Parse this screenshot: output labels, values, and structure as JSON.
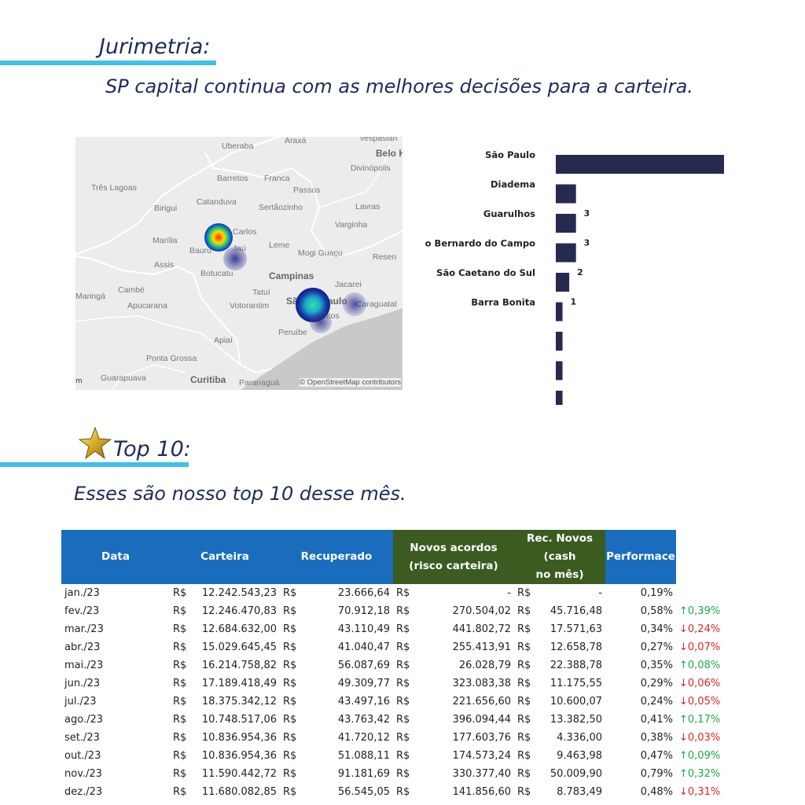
{
  "jurimetria": {
    "title": "Jurimetria:",
    "subtitle": "SP capital continua com as melhores decisões para a carteira."
  },
  "map": {
    "labels": [
      "Araxá",
      "vespasian",
      "Uberaba",
      "Belo H",
      "Divinópolis",
      "Barretos",
      "Franca",
      "Três Lagoas",
      "Passos",
      "Catanduva",
      "Birigui",
      "Sertãozinho",
      "Lavras",
      "Varginha",
      "Carlos",
      "Marília",
      "Bauru",
      "Jaú",
      "Leme",
      "Mogi Guaçu",
      "Resen",
      "Assis",
      "Botucatu",
      "Campinas",
      "Jacarei",
      "Cambé",
      "Maringá",
      "Apucarana",
      "Tatuí",
      "Votorantim",
      "São",
      "Paulo",
      "Caraguatat",
      "Santos",
      "Peruíbe",
      "Apiaí",
      "Ponta Grossa",
      "Guarapuava",
      "Curitiba",
      "Paranaguá"
    ],
    "credit": "© OpenStreetMap contributors",
    "scale": "m"
  },
  "bar_chart": {
    "bar_color": "#262a4f",
    "categories": [
      "São Paulo",
      "Diadema",
      "Guarulhos",
      "São Bernardo do Campo",
      "São Caetano do Sul",
      "Barra Bonita",
      "",
      "",
      ""
    ],
    "data_labels": [
      "",
      "",
      "3",
      "3",
      "2",
      "1",
      "",
      "",
      ""
    ]
  },
  "chart_data": {
    "type": "bar",
    "orientation": "horizontal",
    "categories": [
      "São Paulo",
      "Diadema",
      "Guarulhos",
      "São Bernardo do Campo",
      "São Caetano do Sul",
      "Barra Bonita",
      "",
      "",
      ""
    ],
    "values": [
      25,
      3,
      3,
      3,
      2,
      1,
      1,
      1,
      1
    ],
    "xlim": [
      0,
      25
    ]
  },
  "top10": {
    "title": "Top 10:",
    "subtitle": "Esses são nosso top 10 desse mês."
  },
  "table": {
    "headers": {
      "data": "Data",
      "carteira": "Carteira",
      "recuperado": "Recuperado",
      "novos1": "Novos acordos",
      "novos2": "(risco carteira)",
      "rec1": "Rec. Novos (cash",
      "rec2": "no mês)",
      "performace": "Performace"
    },
    "currency": "R$",
    "rows": [
      {
        "data": "jan./23",
        "carteira": "12.242.543,23",
        "recuperado": "23.666,64",
        "novos": "-",
        "rec": "-",
        "perf": "0,19%",
        "trend": "",
        "dir": ""
      },
      {
        "data": "fev./23",
        "carteira": "12.246.470,83",
        "recuperado": "70.912,18",
        "novos": "270.504,02",
        "rec": "45.716,48",
        "perf": "0,58%",
        "trend": "0,39%",
        "dir": "up"
      },
      {
        "data": "mar./23",
        "carteira": "12.684.632,00",
        "recuperado": "43.110,49",
        "novos": "441.802,72",
        "rec": "17.571,63",
        "perf": "0,34%",
        "trend": "0,24%",
        "dir": "down"
      },
      {
        "data": "abr./23",
        "carteira": "15.029.645,45",
        "recuperado": "41.040,47",
        "novos": "255.413,91",
        "rec": "12.658,78",
        "perf": "0,27%",
        "trend": "0,07%",
        "dir": "down"
      },
      {
        "data": "mai./23",
        "carteira": "16.214.758,82",
        "recuperado": "56.087,69",
        "novos": "26.028,79",
        "rec": "22.388,78",
        "perf": "0,35%",
        "trend": "0,08%",
        "dir": "up"
      },
      {
        "data": "jun./23",
        "carteira": "17.189.418,49",
        "recuperado": "49.309,77",
        "novos": "323.083,38",
        "rec": "11.175,55",
        "perf": "0,29%",
        "trend": "0,06%",
        "dir": "down"
      },
      {
        "data": "jul./23",
        "carteira": "18.375.342,12",
        "recuperado": "43.497,16",
        "novos": "221.656,60",
        "rec": "10.600,07",
        "perf": "0,24%",
        "trend": "0,05%",
        "dir": "down"
      },
      {
        "data": "ago./23",
        "carteira": "10.748.517,06",
        "recuperado": "43.763,42",
        "novos": "396.094,44",
        "rec": "13.382,50",
        "perf": "0,41%",
        "trend": "0,17%",
        "dir": "up"
      },
      {
        "data": "set./23",
        "carteira": "10.836.954,36",
        "recuperado": "41.720,12",
        "novos": "177.603,76",
        "rec": "4.336,00",
        "perf": "0,38%",
        "trend": "0,03%",
        "dir": "down"
      },
      {
        "data": "out./23",
        "carteira": "10.836.954,36",
        "recuperado": "51.088,11",
        "novos": "174.573,24",
        "rec": "9.463,98",
        "perf": "0,47%",
        "trend": "0,09%",
        "dir": "up"
      },
      {
        "data": "nov./23",
        "carteira": "11.590.442,72",
        "recuperado": "91.181,69",
        "novos": "330.377,40",
        "rec": "50.009,90",
        "perf": "0,79%",
        "trend": "0,32%",
        "dir": "up"
      },
      {
        "data": "dez./23",
        "carteira": "11.680.082,85",
        "recuperado": "56.545,05",
        "novos": "141.856,60",
        "rec": "8.783,49",
        "perf": "0,48%",
        "trend": "0,31%",
        "dir": "down"
      }
    ]
  },
  "colors": {
    "accent_line": "#3ec1e8",
    "header_blue": "#1a6dbd",
    "header_green": "#3b5b20",
    "up": "#1fa84a",
    "down": "#e02424",
    "title_text": "#1f2a5c"
  },
  "icons": {
    "star": "gold-star-icon",
    "up": "arrow-up-icon",
    "down": "arrow-down-icon"
  }
}
